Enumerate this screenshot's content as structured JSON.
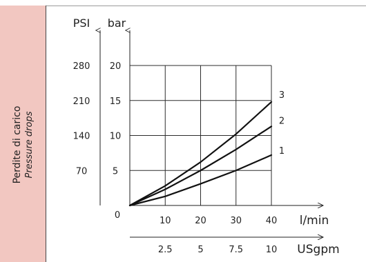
{
  "side_panel": {
    "title": "Perdite di carico",
    "subtitle": "Pressure drops"
  },
  "chart_data": {
    "type": "line",
    "title": "",
    "x_axis_primary": {
      "label": "l/min",
      "ticks": [
        0,
        10,
        20,
        30,
        40
      ],
      "range": [
        0,
        40
      ]
    },
    "x_axis_secondary": {
      "label": "USgpm",
      "ticks": [
        "2.5",
        "5",
        "7.5",
        "10"
      ],
      "positions_lpm": [
        10,
        20,
        30,
        40
      ]
    },
    "y_axis_primary": {
      "label": "bar",
      "ticks": [
        5,
        10,
        15,
        20
      ],
      "range": [
        0,
        20
      ]
    },
    "y_axis_secondary": {
      "label": "PSI",
      "ticks": [
        70,
        140,
        210,
        280
      ],
      "positions_bar": [
        5,
        10,
        15,
        20
      ]
    },
    "grid": true,
    "series": [
      {
        "name": "1",
        "x": [
          0,
          10,
          20,
          30,
          40
        ],
        "y": [
          0,
          1.3,
          3.1,
          5.0,
          7.2
        ]
      },
      {
        "name": "2",
        "x": [
          0,
          10,
          20,
          30,
          40
        ],
        "y": [
          0,
          2.3,
          5.0,
          8.0,
          11.3
        ]
      },
      {
        "name": "3",
        "x": [
          0,
          10,
          20,
          30,
          40
        ],
        "y": [
          0,
          2.8,
          6.2,
          10.2,
          14.8
        ]
      }
    ]
  }
}
